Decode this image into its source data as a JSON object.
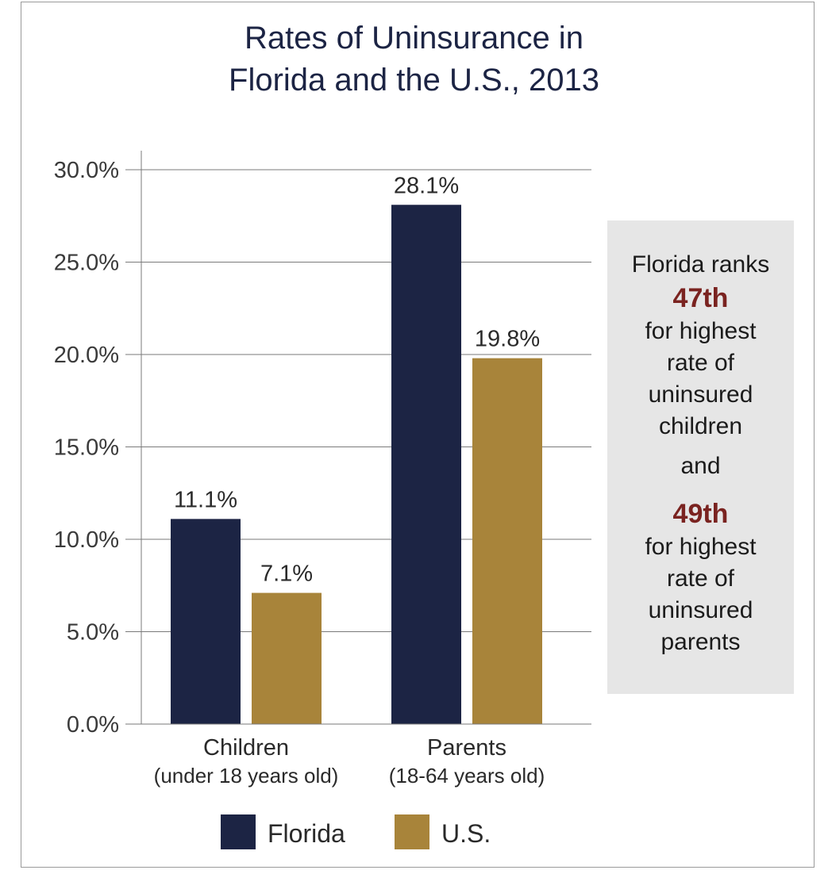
{
  "title_lines": [
    "Rates of Uninsurance in",
    "Florida and the U.S., 2013"
  ],
  "chart_data": {
    "type": "bar",
    "title": "Rates of Uninsurance in Florida and the U.S., 2013",
    "categories": [
      {
        "label": "Children",
        "sublabel": "(under 18 years old)"
      },
      {
        "label": "Parents",
        "sublabel": "(18-64 years old)"
      }
    ],
    "series": [
      {
        "name": "Florida",
        "color": "#1c2444",
        "values": [
          11.1,
          28.1
        ],
        "labels": [
          "11.1%",
          "28.1%"
        ]
      },
      {
        "name": "U.S.",
        "color": "#a8843a",
        "values": [
          7.1,
          19.8
        ],
        "labels": [
          "7.1%",
          "19.8%"
        ]
      }
    ],
    "ylim": [
      0,
      30
    ],
    "yticks": [
      {
        "value": 0,
        "label": "0.0%"
      },
      {
        "value": 5,
        "label": "5.0%"
      },
      {
        "value": 10,
        "label": "10.0%"
      },
      {
        "value": 15,
        "label": "15.0%"
      },
      {
        "value": 20,
        "label": "20.0%"
      },
      {
        "value": 25,
        "label": "25.0%"
      },
      {
        "value": 30,
        "label": "30.0%"
      }
    ],
    "grid": true,
    "legend": "bottom",
    "xlabel": "",
    "ylabel": ""
  },
  "callout": {
    "line1": "Florida ranks",
    "rank1": "47th",
    "desc1": [
      "for highest",
      "rate of",
      "uninsured",
      "children"
    ],
    "connector": "and",
    "rank2": "49th",
    "desc2": [
      "for highest",
      "rate of",
      "uninsured",
      "parents"
    ]
  },
  "colors": {
    "florida": "#1c2444",
    "us": "#a8843a",
    "rank": "#7a2320",
    "callout_bg": "#e6e6e6"
  }
}
